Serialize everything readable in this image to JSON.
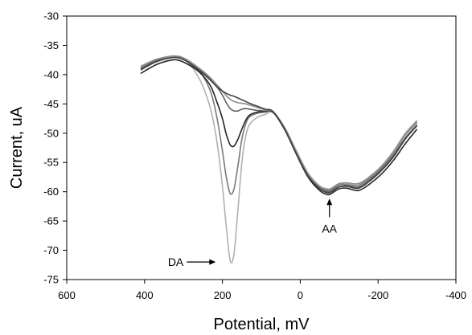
{
  "chart_data": {
    "type": "line",
    "title": "",
    "xlabel": "Potential, mV",
    "ylabel": "Current, uA",
    "xlim": [
      600,
      -400
    ],
    "ylim": [
      -75,
      -30
    ],
    "x_reversed": true,
    "xticks": [
      "600",
      "400",
      "200",
      "0",
      "-200",
      "-400"
    ],
    "xtick_values": [
      600,
      400,
      200,
      0,
      -200,
      -400
    ],
    "yticks": [
      "-30",
      "-35",
      "-40",
      "-45",
      "-50",
      "-55",
      "-60",
      "-65",
      "-70",
      "-75"
    ],
    "ytick_values": [
      -30,
      -35,
      -40,
      -45,
      -50,
      -55,
      -60,
      -65,
      -70,
      -75
    ],
    "grid": false,
    "legend": "none",
    "annotations": [
      {
        "text": "DA",
        "arrow": "right",
        "points_to": {
          "x": 180,
          "y": -72
        }
      },
      {
        "text": "AA",
        "arrow": "up",
        "points_to": {
          "x": -75,
          "y": -60.5
        }
      }
    ],
    "series": [
      {
        "color": "#b0b0b0",
        "x": [
          410,
          370,
          330,
          310,
          290,
          270,
          250,
          230,
          215,
          200,
          190,
          180,
          170,
          160,
          150,
          140,
          130,
          110,
          90,
          70,
          40,
          10,
          -20,
          -50,
          -70,
          -80,
          -100,
          -120,
          -150,
          -180,
          -210,
          -240,
          -270,
          -300
        ],
        "y": [
          -38.5,
          -37.4,
          -36.8,
          -37.0,
          -37.8,
          -39.5,
          -42.0,
          -46.0,
          -51.0,
          -59.0,
          -66.0,
          -71.8,
          -70.5,
          -63.0,
          -55.0,
          -50.5,
          -48.5,
          -47.3,
          -46.8,
          -46.5,
          -49.0,
          -53.0,
          -56.8,
          -59.0,
          -59.5,
          -59.5,
          -58.6,
          -58.6,
          -58.6,
          -57.3,
          -55.5,
          -53.0,
          -50.0,
          -47.8
        ]
      },
      {
        "color": "#7a7a7a",
        "x": [
          410,
          370,
          330,
          310,
          290,
          270,
          250,
          230,
          215,
          200,
          190,
          180,
          170,
          160,
          150,
          140,
          130,
          110,
          90,
          70,
          40,
          10,
          -20,
          -50,
          -70,
          -80,
          -100,
          -120,
          -150,
          -180,
          -210,
          -240,
          -270,
          -300
        ],
        "y": [
          -38.8,
          -37.5,
          -36.9,
          -37.0,
          -37.6,
          -38.6,
          -40.2,
          -43.0,
          -47.0,
          -53.0,
          -57.5,
          -60.3,
          -59.5,
          -55.5,
          -51.0,
          -48.4,
          -47.2,
          -46.6,
          -46.4,
          -46.4,
          -49.2,
          -53.2,
          -57.0,
          -59.2,
          -59.8,
          -59.7,
          -58.8,
          -58.8,
          -58.9,
          -57.6,
          -55.8,
          -53.3,
          -50.3,
          -48.2
        ]
      },
      {
        "color": "#262626",
        "x": [
          410,
          370,
          330,
          310,
          290,
          270,
          250,
          230,
          215,
          200,
          190,
          180,
          170,
          160,
          150,
          140,
          130,
          110,
          90,
          70,
          40,
          10,
          -20,
          -50,
          -70,
          -80,
          -100,
          -120,
          -150,
          -180,
          -210,
          -240,
          -270,
          -300
        ],
        "y": [
          -39.8,
          -38.3,
          -37.5,
          -37.6,
          -38.2,
          -39.0,
          -40.2,
          -42.0,
          -44.5,
          -47.5,
          -50.2,
          -52.0,
          -52.2,
          -51.0,
          -49.3,
          -47.8,
          -46.9,
          -46.4,
          -46.3,
          -46.4,
          -49.4,
          -53.6,
          -57.5,
          -59.8,
          -60.5,
          -60.3,
          -59.5,
          -59.4,
          -59.8,
          -58.6,
          -56.9,
          -54.6,
          -51.8,
          -49.3
        ]
      },
      {
        "color": "#5e5e5e",
        "x": [
          410,
          370,
          330,
          310,
          290,
          270,
          250,
          230,
          215,
          200,
          190,
          180,
          170,
          160,
          150,
          140,
          130,
          110,
          90,
          70,
          40,
          10,
          -20,
          -50,
          -70,
          -80,
          -100,
          -120,
          -150,
          -180,
          -210,
          -240,
          -270,
          -300
        ],
        "y": [
          -39.0,
          -37.6,
          -37.0,
          -37.1,
          -37.7,
          -38.6,
          -39.6,
          -40.8,
          -42.0,
          -43.5,
          -44.8,
          -45.8,
          -46.2,
          -46.2,
          -45.9,
          -45.8,
          -45.9,
          -46.1,
          -46.2,
          -46.3,
          -49.2,
          -53.4,
          -57.2,
          -59.4,
          -60.0,
          -59.9,
          -59.1,
          -59.0,
          -59.2,
          -57.9,
          -56.1,
          -53.7,
          -50.8,
          -48.6
        ]
      },
      {
        "color": "#8c8c8c",
        "x": [
          410,
          370,
          330,
          310,
          290,
          270,
          250,
          230,
          215,
          200,
          190,
          180,
          170,
          160,
          150,
          140,
          130,
          110,
          90,
          70,
          40,
          10,
          -20,
          -50,
          -70,
          -80,
          -100,
          -120,
          -150,
          -180,
          -210,
          -240,
          -270,
          -300
        ],
        "y": [
          -38.7,
          -37.4,
          -36.9,
          -36.9,
          -37.5,
          -38.4,
          -39.4,
          -40.6,
          -41.7,
          -42.8,
          -43.6,
          -44.2,
          -44.6,
          -44.8,
          -44.9,
          -45.0,
          -45.2,
          -45.6,
          -46.0,
          -46.3,
          -49.1,
          -53.2,
          -57.0,
          -59.1,
          -59.6,
          -59.4,
          -58.6,
          -58.5,
          -58.6,
          -57.4,
          -55.6,
          -53.2,
          -50.2,
          -48.0
        ]
      },
      {
        "color": "#444444",
        "x": [
          410,
          370,
          330,
          310,
          290,
          270,
          250,
          230,
          215,
          200,
          190,
          180,
          170,
          160,
          150,
          140,
          130,
          110,
          90,
          70,
          40,
          10,
          -20,
          -50,
          -70,
          -80,
          -100,
          -120,
          -150,
          -180,
          -210,
          -240,
          -270,
          -300
        ],
        "y": [
          -39.2,
          -37.8,
          -37.1,
          -37.2,
          -37.8,
          -38.8,
          -39.8,
          -41.0,
          -42.0,
          -42.8,
          -43.2,
          -43.5,
          -43.7,
          -44.0,
          -44.3,
          -44.6,
          -44.9,
          -45.4,
          -45.9,
          -46.3,
          -49.3,
          -53.5,
          -57.3,
          -59.5,
          -60.2,
          -60.0,
          -59.2,
          -59.1,
          -59.4,
          -58.1,
          -56.3,
          -54.0,
          -51.0,
          -48.7
        ]
      }
    ]
  }
}
